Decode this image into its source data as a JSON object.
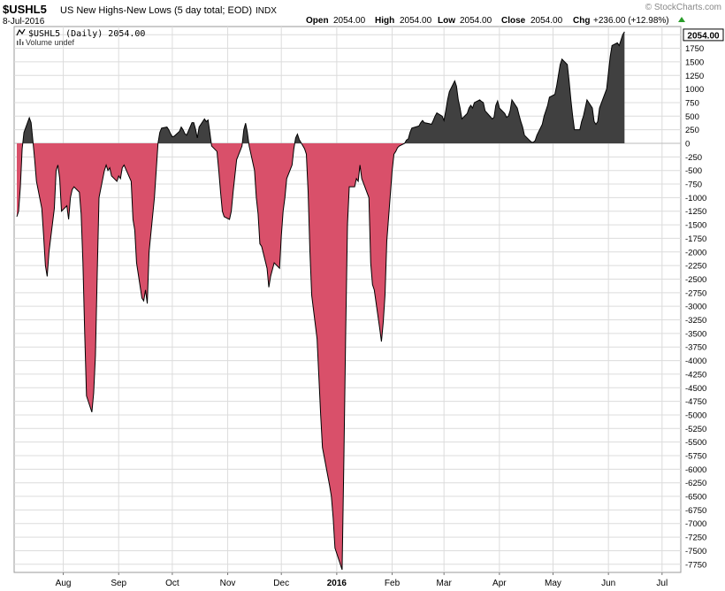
{
  "header": {
    "symbol": "$USHL5",
    "name": "US New Highs-New Lows (5 day total; EOD)",
    "exchange": "INDX",
    "date": "8-Jul-2016",
    "watermark": "© StockCharts.com",
    "ohlc": {
      "open_label": "Open",
      "open": "2054.00",
      "high_label": "High",
      "high": "2054.00",
      "low_label": "Low",
      "low": "2054.00",
      "close_label": "Close",
      "close": "2054.00",
      "chg_label": "Chg",
      "chg": "+236.00 (+12.98%)"
    }
  },
  "legend": {
    "series_label": "$USHL5 (Daily) 2054.00",
    "volume_label": "Volume undef"
  },
  "last_value_tag": "2054.00",
  "colors": {
    "positive_fill": "#404040",
    "negative_fill": "#d9506a",
    "line": "#000000",
    "grid": "#dcdcdc",
    "up_arrow": "#2a9d2a"
  },
  "chart_data": {
    "type": "area",
    "ylim": [
      -7900,
      2150
    ],
    "y_ticks": [
      2000,
      1750,
      1500,
      1250,
      1000,
      750,
      500,
      250,
      0,
      -250,
      -500,
      -750,
      -1000,
      -1250,
      -1500,
      -1750,
      -2000,
      -2250,
      -2500,
      -2750,
      -3000,
      -3250,
      -3500,
      -3750,
      -4000,
      -4250,
      -4500,
      -4750,
      -5000,
      -5250,
      -5500,
      -5750,
      -6000,
      -6250,
      -6500,
      -6750,
      -7000,
      -7250,
      -7500,
      -7750
    ],
    "x_labels": [
      {
        "label": "Aug",
        "date": "2015-08-01",
        "bold": false
      },
      {
        "label": "Sep",
        "date": "2015-09-01",
        "bold": false
      },
      {
        "label": "Oct",
        "date": "2015-10-01",
        "bold": false
      },
      {
        "label": "Nov",
        "date": "2015-11-01",
        "bold": false
      },
      {
        "label": "Dec",
        "date": "2015-12-01",
        "bold": false
      },
      {
        "label": "2016",
        "date": "2016-01-01",
        "bold": true
      },
      {
        "label": "Feb",
        "date": "2016-02-01",
        "bold": false
      },
      {
        "label": "Mar",
        "date": "2016-03-01",
        "bold": false
      },
      {
        "label": "Apr",
        "date": "2016-04-01",
        "bold": false
      },
      {
        "label": "May",
        "date": "2016-05-01",
        "bold": false
      },
      {
        "label": "Jun",
        "date": "2016-06-01",
        "bold": false
      },
      {
        "label": "Jul",
        "date": "2016-07-01",
        "bold": false
      }
    ],
    "series": [
      {
        "points": [
          [
            "2015-07-06",
            -1350
          ],
          [
            "2015-07-07",
            -1250
          ],
          [
            "2015-07-08",
            -800
          ],
          [
            "2015-07-09",
            -100
          ],
          [
            "2015-07-10",
            200
          ],
          [
            "2015-07-13",
            470
          ],
          [
            "2015-07-14",
            380
          ],
          [
            "2015-07-15",
            50
          ],
          [
            "2015-07-16",
            -300
          ],
          [
            "2015-07-17",
            -700
          ],
          [
            "2015-07-20",
            -1200
          ],
          [
            "2015-07-21",
            -1700
          ],
          [
            "2015-07-22",
            -2250
          ],
          [
            "2015-07-23",
            -2450
          ],
          [
            "2015-07-24",
            -2000
          ],
          [
            "2015-07-27",
            -1200
          ],
          [
            "2015-07-28",
            -500
          ],
          [
            "2015-07-29",
            -400
          ],
          [
            "2015-07-30",
            -650
          ],
          [
            "2015-07-31",
            -1250
          ],
          [
            "2015-08-03",
            -1150
          ],
          [
            "2015-08-04",
            -1400
          ],
          [
            "2015-08-05",
            -1000
          ],
          [
            "2015-08-06",
            -850
          ],
          [
            "2015-08-07",
            -800
          ],
          [
            "2015-08-10",
            -900
          ],
          [
            "2015-08-11",
            -1300
          ],
          [
            "2015-08-12",
            -2200
          ],
          [
            "2015-08-13",
            -3500
          ],
          [
            "2015-08-14",
            -4650
          ],
          [
            "2015-08-17",
            -4950
          ],
          [
            "2015-08-18",
            -4600
          ],
          [
            "2015-08-19",
            -3900
          ],
          [
            "2015-08-20",
            -2400
          ],
          [
            "2015-08-21",
            -1000
          ],
          [
            "2015-08-24",
            -500
          ],
          [
            "2015-08-25",
            -400
          ],
          [
            "2015-08-26",
            -500
          ],
          [
            "2015-08-27",
            -450
          ],
          [
            "2015-08-28",
            -600
          ],
          [
            "2015-08-31",
            -700
          ],
          [
            "2015-09-01",
            -600
          ],
          [
            "2015-09-02",
            -650
          ],
          [
            "2015-09-03",
            -450
          ],
          [
            "2015-09-04",
            -400
          ],
          [
            "2015-09-08",
            -700
          ],
          [
            "2015-09-09",
            -1400
          ],
          [
            "2015-09-10",
            -1600
          ],
          [
            "2015-09-11",
            -2200
          ],
          [
            "2015-09-14",
            -2850
          ],
          [
            "2015-09-15",
            -2900
          ],
          [
            "2015-09-16",
            -2700
          ],
          [
            "2015-09-17",
            -2950
          ],
          [
            "2015-09-18",
            -2000
          ],
          [
            "2015-09-21",
            -1000
          ],
          [
            "2015-09-22",
            -500
          ],
          [
            "2015-09-23",
            0
          ],
          [
            "2015-09-24",
            200
          ],
          [
            "2015-09-25",
            280
          ],
          [
            "2015-09-28",
            300
          ],
          [
            "2015-09-29",
            250
          ],
          [
            "2015-09-30",
            180
          ],
          [
            "2015-10-01",
            120
          ],
          [
            "2015-10-02",
            130
          ],
          [
            "2015-10-05",
            220
          ],
          [
            "2015-10-06",
            300
          ],
          [
            "2015-10-07",
            250
          ],
          [
            "2015-10-08",
            180
          ],
          [
            "2015-10-09",
            150
          ],
          [
            "2015-10-12",
            380
          ],
          [
            "2015-10-13",
            380
          ],
          [
            "2015-10-14",
            260
          ],
          [
            "2015-10-15",
            100
          ],
          [
            "2015-10-16",
            300
          ],
          [
            "2015-10-19",
            450
          ],
          [
            "2015-10-20",
            400
          ],
          [
            "2015-10-21",
            430
          ],
          [
            "2015-10-22",
            200
          ],
          [
            "2015-10-23",
            -50
          ],
          [
            "2015-10-26",
            -150
          ],
          [
            "2015-10-27",
            -500
          ],
          [
            "2015-10-28",
            -900
          ],
          [
            "2015-10-29",
            -1250
          ],
          [
            "2015-10-30",
            -1350
          ],
          [
            "2015-11-02",
            -1400
          ],
          [
            "2015-11-03",
            -1250
          ],
          [
            "2015-11-04",
            -900
          ],
          [
            "2015-11-05",
            -600
          ],
          [
            "2015-11-06",
            -300
          ],
          [
            "2015-11-09",
            -50
          ],
          [
            "2015-11-10",
            250
          ],
          [
            "2015-11-11",
            370
          ],
          [
            "2015-11-12",
            200
          ],
          [
            "2015-11-13",
            -50
          ],
          [
            "2015-11-16",
            -500
          ],
          [
            "2015-11-17",
            -1000
          ],
          [
            "2015-11-18",
            -1300
          ],
          [
            "2015-11-19",
            -1850
          ],
          [
            "2015-11-20",
            -1900
          ],
          [
            "2015-11-23",
            -2300
          ],
          [
            "2015-11-24",
            -2650
          ],
          [
            "2015-11-25",
            -2450
          ],
          [
            "2015-11-27",
            -2200
          ],
          [
            "2015-11-30",
            -2300
          ],
          [
            "2015-12-01",
            -1700
          ],
          [
            "2015-12-02",
            -1250
          ],
          [
            "2015-12-03",
            -1000
          ],
          [
            "2015-12-04",
            -650
          ],
          [
            "2015-12-07",
            -400
          ],
          [
            "2015-12-08",
            -100
          ],
          [
            "2015-12-09",
            100
          ],
          [
            "2015-12-10",
            170
          ],
          [
            "2015-12-11",
            70
          ],
          [
            "2015-12-14",
            -100
          ],
          [
            "2015-12-15",
            -200
          ],
          [
            "2015-12-16",
            -900
          ],
          [
            "2015-12-17",
            -2000
          ],
          [
            "2015-12-18",
            -2800
          ],
          [
            "2015-12-21",
            -3600
          ],
          [
            "2015-12-22",
            -4300
          ],
          [
            "2015-12-23",
            -5000
          ],
          [
            "2015-12-24",
            -5600
          ],
          [
            "2015-12-28",
            -6300
          ],
          [
            "2015-12-29",
            -6500
          ],
          [
            "2015-12-30",
            -6900
          ],
          [
            "2015-12-31",
            -7450
          ],
          [
            "2016-01-04",
            -7850
          ],
          [
            "2016-01-05",
            -5800
          ],
          [
            "2016-01-06",
            -3500
          ],
          [
            "2016-01-07",
            -1500
          ],
          [
            "2016-01-08",
            -800
          ],
          [
            "2016-01-11",
            -800
          ],
          [
            "2016-01-12",
            -650
          ],
          [
            "2016-01-13",
            -700
          ],
          [
            "2016-01-14",
            -400
          ],
          [
            "2016-01-15",
            -650
          ],
          [
            "2016-01-19",
            -1000
          ],
          [
            "2016-01-20",
            -2200
          ],
          [
            "2016-01-21",
            -2600
          ],
          [
            "2016-01-22",
            -2700
          ],
          [
            "2016-01-25",
            -3400
          ],
          [
            "2016-01-26",
            -3650
          ],
          [
            "2016-01-27",
            -3300
          ],
          [
            "2016-01-28",
            -2800
          ],
          [
            "2016-01-29",
            -1800
          ],
          [
            "2016-02-01",
            -500
          ],
          [
            "2016-02-02",
            -200
          ],
          [
            "2016-02-03",
            -150
          ],
          [
            "2016-02-04",
            -80
          ],
          [
            "2016-02-05",
            -50
          ],
          [
            "2016-02-08",
            0
          ],
          [
            "2016-02-09",
            60
          ],
          [
            "2016-02-10",
            80
          ],
          [
            "2016-02-11",
            200
          ],
          [
            "2016-02-12",
            280
          ],
          [
            "2016-02-16",
            320
          ],
          [
            "2016-02-17",
            380
          ],
          [
            "2016-02-18",
            420
          ],
          [
            "2016-02-19",
            380
          ],
          [
            "2016-02-22",
            360
          ],
          [
            "2016-02-23",
            350
          ],
          [
            "2016-02-24",
            420
          ],
          [
            "2016-02-25",
            500
          ],
          [
            "2016-02-26",
            560
          ],
          [
            "2016-02-29",
            500
          ],
          [
            "2016-03-01",
            420
          ],
          [
            "2016-03-02",
            600
          ],
          [
            "2016-03-03",
            800
          ],
          [
            "2016-03-04",
            950
          ],
          [
            "2016-03-07",
            1150
          ],
          [
            "2016-03-08",
            1050
          ],
          [
            "2016-03-09",
            800
          ],
          [
            "2016-03-10",
            650
          ],
          [
            "2016-03-11",
            450
          ],
          [
            "2016-03-14",
            550
          ],
          [
            "2016-03-15",
            650
          ],
          [
            "2016-03-16",
            700
          ],
          [
            "2016-03-17",
            650
          ],
          [
            "2016-03-18",
            750
          ],
          [
            "2016-03-21",
            800
          ],
          [
            "2016-03-22",
            770
          ],
          [
            "2016-03-23",
            750
          ],
          [
            "2016-03-24",
            600
          ],
          [
            "2016-03-28",
            450
          ],
          [
            "2016-03-29",
            480
          ],
          [
            "2016-03-30",
            700
          ],
          [
            "2016-03-31",
            780
          ],
          [
            "2016-04-01",
            650
          ],
          [
            "2016-04-04",
            550
          ],
          [
            "2016-04-05",
            480
          ],
          [
            "2016-04-06",
            500
          ],
          [
            "2016-04-07",
            600
          ],
          [
            "2016-04-08",
            800
          ],
          [
            "2016-04-11",
            650
          ],
          [
            "2016-04-12",
            520
          ],
          [
            "2016-04-13",
            400
          ],
          [
            "2016-04-14",
            300
          ],
          [
            "2016-04-15",
            150
          ],
          [
            "2016-04-18",
            50
          ],
          [
            "2016-04-19",
            20
          ],
          [
            "2016-04-20",
            20
          ],
          [
            "2016-04-21",
            50
          ],
          [
            "2016-04-22",
            150
          ],
          [
            "2016-04-25",
            350
          ],
          [
            "2016-04-26",
            500
          ],
          [
            "2016-04-27",
            600
          ],
          [
            "2016-04-28",
            700
          ],
          [
            "2016-04-29",
            850
          ],
          [
            "2016-05-02",
            900
          ],
          [
            "2016-05-03",
            1050
          ],
          [
            "2016-05-04",
            1250
          ],
          [
            "2016-05-05",
            1450
          ],
          [
            "2016-05-06",
            1550
          ],
          [
            "2016-05-09",
            1450
          ],
          [
            "2016-05-10",
            1150
          ],
          [
            "2016-05-11",
            800
          ],
          [
            "2016-05-12",
            500
          ],
          [
            "2016-05-13",
            250
          ],
          [
            "2016-05-16",
            250
          ],
          [
            "2016-05-17",
            400
          ],
          [
            "2016-05-18",
            500
          ],
          [
            "2016-05-19",
            650
          ],
          [
            "2016-05-20",
            800
          ],
          [
            "2016-05-23",
            650
          ],
          [
            "2016-05-24",
            400
          ],
          [
            "2016-05-25",
            350
          ],
          [
            "2016-05-26",
            400
          ],
          [
            "2016-05-27",
            650
          ],
          [
            "2016-05-31",
            1000
          ],
          [
            "2016-06-01",
            1300
          ],
          [
            "2016-06-02",
            1600
          ],
          [
            "2016-06-03",
            1800
          ],
          [
            "2016-06-06",
            1850
          ],
          [
            "2016-06-07",
            1800
          ],
          [
            "2016-06-08",
            1900
          ],
          [
            "2016-06-09",
            2000
          ],
          [
            "2016-06-10",
            2054
          ]
        ]
      }
    ]
  }
}
